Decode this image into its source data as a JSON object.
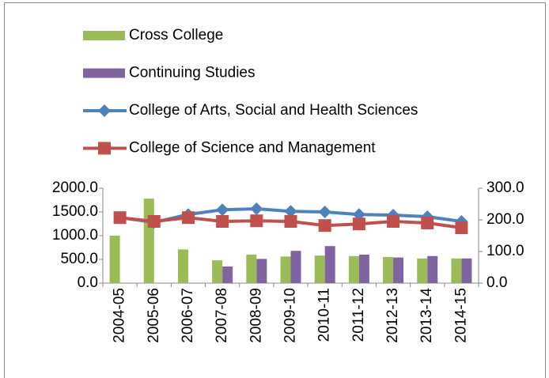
{
  "chart_data": {
    "type": "bar",
    "categories": [
      "2004-05",
      "2005-06",
      "2006-07",
      "2007-08",
      "2008-09",
      "2009-10",
      "2010-11",
      "2011-12",
      "2012-13",
      "2013-14",
      "2014-15"
    ],
    "series": [
      {
        "name": "Cross College",
        "type": "bar",
        "color": "#9bbb59",
        "axis": "y",
        "values": [
          1000,
          1780,
          710,
          480,
          600,
          560,
          580,
          570,
          550,
          520,
          520
        ]
      },
      {
        "name": "Continuing Studies",
        "type": "bar",
        "color": "#8064a2",
        "axis": "y",
        "values": [
          null,
          null,
          null,
          350,
          510,
          680,
          780,
          600,
          540,
          570,
          520
        ]
      },
      {
        "name": "College of Arts, Social and Health Sciences",
        "type": "line",
        "marker": "diamond",
        "color": "#4f81bd",
        "axis": "y2",
        "values": [
          207,
          192,
          217,
          232,
          235,
          227,
          225,
          217,
          215,
          210,
          195
        ]
      },
      {
        "name": "College of Science and Management",
        "type": "line",
        "marker": "square",
        "color": "#c0504d",
        "axis": "y2",
        "values": [
          207,
          195,
          207,
          195,
          197,
          195,
          182,
          187,
          195,
          190,
          175
        ]
      }
    ],
    "ylim": [
      0,
      2000
    ],
    "yticks": [
      {
        "value": 0,
        "label": "0.0"
      },
      {
        "value": 500,
        "label": "500.0"
      },
      {
        "value": 1000,
        "label": "1000.0"
      },
      {
        "value": 1500,
        "label": "1500.0"
      },
      {
        "value": 2000,
        "label": "2000.0"
      }
    ],
    "y2lim": [
      0,
      300
    ],
    "y2ticks": [
      {
        "value": 0,
        "label": "0.0"
      },
      {
        "value": 100,
        "label": "100.0"
      },
      {
        "value": 200,
        "label": "200.0"
      },
      {
        "value": 300,
        "label": "300.0"
      }
    ],
    "grid": false,
    "legend": "top"
  }
}
